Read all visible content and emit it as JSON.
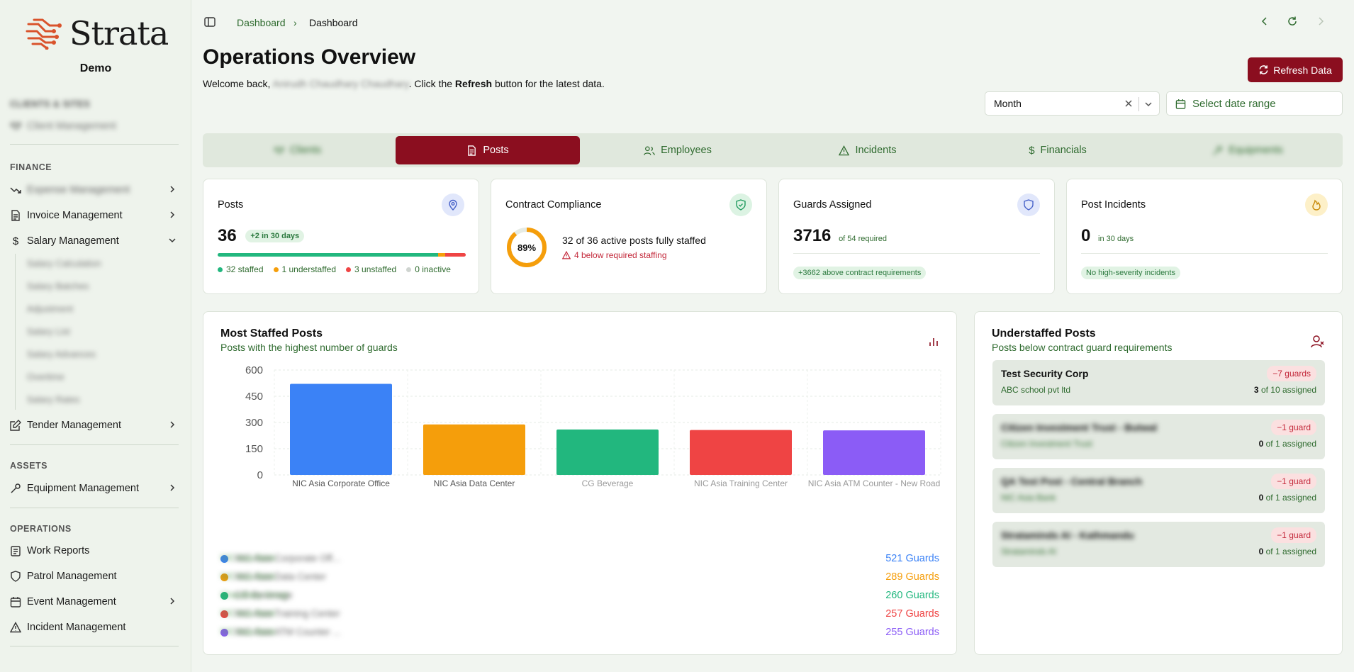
{
  "sidebar": {
    "brand": "Strata",
    "subtitle": "Demo",
    "sections": {
      "clients": "CLIENTS & SITES",
      "finance": "FINANCE",
      "assets": "ASSETS",
      "operations": "OPERATIONS"
    },
    "items": {
      "client_management": "Client Management",
      "expense_management": "Expense Management",
      "invoice_management": "Invoice Management",
      "salary_management": "Salary Management",
      "tender_management": "Tender Management",
      "equipment_management": "Equipment Management",
      "work_reports": "Work Reports",
      "patrol_management": "Patrol Management",
      "event_management": "Event Management",
      "incident_management": "Incident Management"
    },
    "salary_sub": [
      "Salary Calculation",
      "Salary Batches",
      "Adjustment",
      "Salary List",
      "Salary Advances",
      "Overtime",
      "Salary Rates"
    ]
  },
  "breadcrumb": {
    "first": "Dashboard",
    "second": "Dashboard"
  },
  "header": {
    "title": "Operations Overview",
    "welcome_prefix": "Welcome back,",
    "user_name": "Anirudh Chaudhary Chaudhary",
    "welcome_mid": ". Click the",
    "welcome_bold": "Refresh",
    "welcome_suffix": "button for the latest data.",
    "refresh_label": "Refresh Data",
    "period_value": "Month",
    "date_placeholder": "Select date range"
  },
  "tabs": [
    "Clients",
    "Posts",
    "Employees",
    "Incidents",
    "Financials",
    "Equipments"
  ],
  "stats": {
    "posts": {
      "title": "Posts",
      "value": "36",
      "delta": "+2 in 30 days",
      "staffed": 32,
      "understaffed": 1,
      "unstaffed": 3,
      "inactive": 0,
      "staffed_label": "32 staffed",
      "understaffed_label": "1 understaffed",
      "unstaffed_label": "3 unstaffed",
      "inactive_label": "0 inactive"
    },
    "compliance": {
      "title": "Contract Compliance",
      "percent": 89,
      "percent_label": "89%",
      "text": "32 of 36 active posts fully staffed",
      "warning": "4 below required staffing"
    },
    "guards": {
      "title": "Guards Assigned",
      "value": "3716",
      "sub": "of 54 required",
      "pill": "+3662 above contract requirements"
    },
    "incidents": {
      "title": "Post Incidents",
      "value": "0",
      "sub": "in 30 days",
      "pill": "No high-severity incidents"
    }
  },
  "most_staffed": {
    "title": "Most Staffed Posts",
    "subtitle": "Posts with the highest number of guards",
    "legend": [
      {
        "name": "NIC Asia Corporate Off...",
        "org": "NIC Asia Bank",
        "value": "521 Guards"
      },
      {
        "name": "NIC Asia Data Center",
        "org": "NIC Asia Bank",
        "value": "289 Guards"
      },
      {
        "name": "CG Beverage",
        "org": "Chaudhary Group",
        "value": "260 Guards"
      },
      {
        "name": "NIC Asia Training Center",
        "org": "NIC Asia Bank",
        "value": "257 Guards"
      },
      {
        "name": "NIC Asia ATM Counter ...",
        "org": "NIC Asia Bank",
        "value": "255 Guards"
      }
    ]
  },
  "chart_data": {
    "type": "bar",
    "categories": [
      "NIC Asia Corporate Office",
      "NIC Asia Data Center",
      "CG Beverage",
      "NIC Asia Training Center",
      "NIC Asia ATM Counter - New Road"
    ],
    "values": [
      521,
      289,
      260,
      257,
      255
    ],
    "colors": [
      "#3b82f6",
      "#f59e0b",
      "#22b77e",
      "#ef4444",
      "#8b5cf6"
    ],
    "yticks": [
      0,
      150,
      300,
      450,
      600
    ],
    "ylim": [
      0,
      600
    ],
    "grid": true
  },
  "understaffed": {
    "title": "Understaffed Posts",
    "subtitle": "Posts below contract guard requirements",
    "items": [
      {
        "name": "Test Security Corp",
        "org": "ABC school pvt ltd",
        "badge": "−7 guards",
        "assigned": "3",
        "of": "of 10 assigned"
      },
      {
        "name": "Citizen Investment Trust - Butwal",
        "org": "Citizen Investment Trust",
        "badge": "−1 guard",
        "assigned": "0",
        "of": "of 1 assigned"
      },
      {
        "name": "QA Test Post - Central Branch",
        "org": "NIC Asia Bank",
        "badge": "−1 guard",
        "assigned": "0",
        "of": "of 1 assigned"
      },
      {
        "name": "Stratаminds AI - Kathmandu",
        "org": "Stratаminds AI",
        "badge": "−1 guard",
        "assigned": "0",
        "of": "of 1 assigned"
      }
    ]
  },
  "colors": {
    "brand": "#8b0e1f",
    "green": "#2f6b2f",
    "staffed": "#22b77e",
    "understaffed": "#f59e0b",
    "unstaffed": "#ef4444",
    "inactive": "#cfd4d0"
  }
}
